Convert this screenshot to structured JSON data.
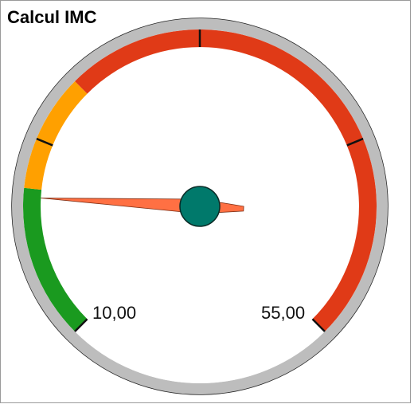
{
  "window": {
    "title": "Calcul IMC"
  },
  "gauge": {
    "min_label": "10,00",
    "max_label": "55,00",
    "value": 18,
    "min": 10,
    "max": 55,
    "colors": {
      "rim": "#bdbdbd",
      "rim_outline": "#222222",
      "underweight": "#1a9a1f",
      "normal": "#ffa000",
      "high": "#e03a17",
      "needle": "#ff7043",
      "hub": "#00796b"
    },
    "bands": [
      {
        "name": "underweight",
        "from": 10,
        "to": 18.5,
        "color": "#1a9a1f"
      },
      {
        "name": "normal",
        "from": 18.5,
        "to": 25,
        "color": "#ffa000"
      },
      {
        "name": "high",
        "from": 25,
        "to": 55,
        "color": "#e03a17"
      }
    ]
  }
}
